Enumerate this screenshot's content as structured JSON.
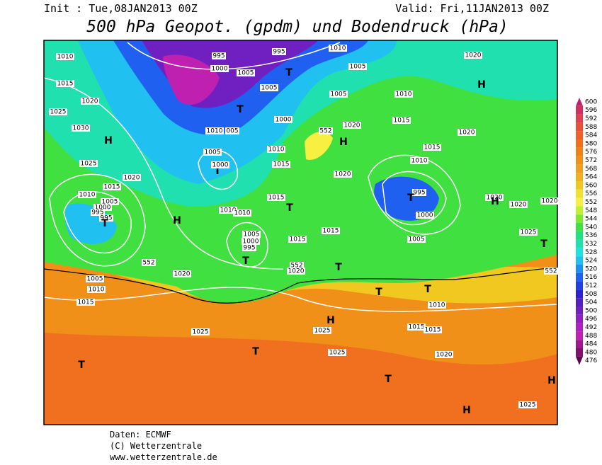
{
  "header": {
    "init": "Init : Tue,08JAN2013 00Z",
    "valid": "Valid: Fri,11JAN2013 00Z",
    "title": "500 hPa Geopot. (gpdm) und Bodendruck (hPa)"
  },
  "footer": [
    "Daten: ECMWF",
    "(C) Wetterzentrale",
    "www.wetterzentrale.de"
  ],
  "colorbar": {
    "labels": [
      "600",
      "596",
      "592",
      "588",
      "584",
      "580",
      "576",
      "572",
      "568",
      "564",
      "560",
      "556",
      "552",
      "548",
      "544",
      "540",
      "536",
      "532",
      "528",
      "524",
      "520",
      "516",
      "512",
      "508",
      "504",
      "500",
      "496",
      "492",
      "488",
      "484",
      "480",
      "476"
    ],
    "colors": [
      "#c0206a",
      "#d03060",
      "#e04050",
      "#e85038",
      "#f06028",
      "#f07020",
      "#f08018",
      "#f09018",
      "#f0a020",
      "#f0b020",
      "#f0c820",
      "#f0e030",
      "#f8f040",
      "#c0f030",
      "#80e830",
      "#40e040",
      "#20e080",
      "#20e0b0",
      "#20e0e0",
      "#20c0f0",
      "#2090f0",
      "#2060f0",
      "#2040e0",
      "#3020d0",
      "#5020c0",
      "#7020c0",
      "#9020c0",
      "#b020c0",
      "#c020b0",
      "#a01890",
      "#801070",
      "#600050"
    ]
  },
  "map": {
    "labels": [
      "1010",
      "1015",
      "1020",
      "1025",
      "1030",
      "H",
      "1025",
      "1020",
      "1015",
      "1010",
      "1005",
      "1000",
      "995",
      "995",
      "T",
      "H",
      "1005",
      "1010",
      "1015",
      "1020",
      "552",
      "995",
      "1000",
      "1005",
      "995",
      "T",
      "1005",
      "T",
      "1000",
      "1010",
      "005",
      "1005",
      "1010",
      "T",
      "1000",
      "1015",
      "1015",
      "T",
      "1010",
      "1010",
      "1005",
      "1000",
      "995",
      "T",
      "1015",
      "552",
      "1020",
      "1010",
      "1005",
      "1005",
      "1010",
      "1015",
      "1020",
      "552",
      "H",
      "1020",
      "1015",
      "1010",
      "995",
      "T",
      "1000",
      "1015",
      "T",
      "1005",
      "T",
      "T",
      "1010",
      "1020",
      "H",
      "1020",
      "1020",
      "H",
      "1020",
      "1020",
      "1025",
      "T",
      "552",
      "1025",
      "T",
      "H",
      "1025",
      "1025",
      "1015",
      "1015",
      "1020",
      "T",
      "T",
      "H",
      "1025",
      "H"
    ]
  }
}
